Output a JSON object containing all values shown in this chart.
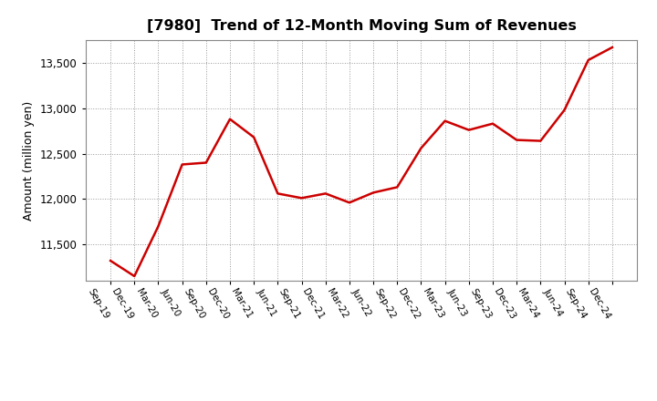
{
  "title": "[7980]  Trend of 12-Month Moving Sum of Revenues",
  "ylabel": "Amount (million yen)",
  "line_color": "#CC0000",
  "line_width": 1.8,
  "background_color": "#FFFFFF",
  "grid_color": "#999999",
  "ylim": [
    11100,
    13750
  ],
  "yticks": [
    11500,
    12000,
    12500,
    13000,
    13500
  ],
  "labels": [
    "Sep-19",
    "Dec-19",
    "Mar-20",
    "Jun-20",
    "Sep-20",
    "Dec-20",
    "Mar-21",
    "Jun-21",
    "Sep-21",
    "Dec-21",
    "Mar-22",
    "Jun-22",
    "Sep-22",
    "Dec-22",
    "Mar-23",
    "Jun-23",
    "Sep-23",
    "Dec-23",
    "Mar-24",
    "Jun-24",
    "Sep-24",
    "Dec-24"
  ],
  "values": [
    11320,
    11150,
    11700,
    12380,
    12400,
    12880,
    12680,
    12060,
    12010,
    12060,
    11960,
    12070,
    12130,
    12560,
    12860,
    12760,
    12830,
    12650,
    12640,
    12980,
    13530,
    13670
  ]
}
